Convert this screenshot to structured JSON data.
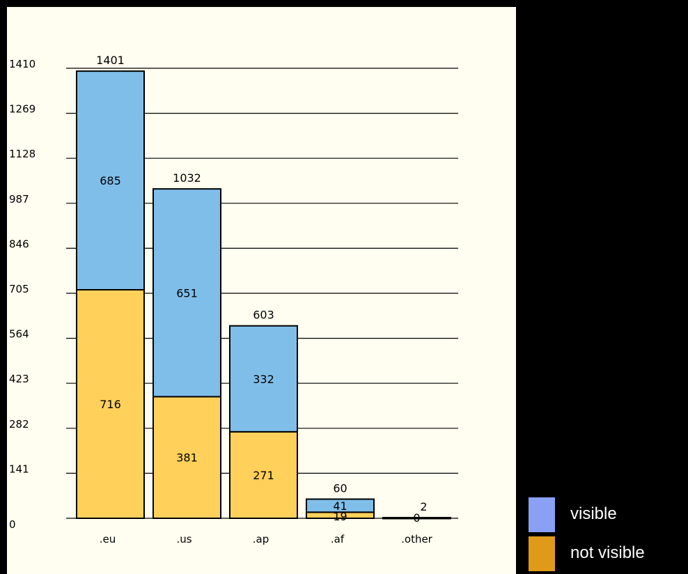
{
  "chart_data": {
    "type": "bar",
    "stacked": true,
    "categories": [
      ".eu",
      ".us",
      ".ap",
      ".af",
      ".other"
    ],
    "series": [
      {
        "name": "not visible",
        "values": [
          716,
          381,
          271,
          19,
          0
        ],
        "color": "#FFD05A"
      },
      {
        "name": "visible",
        "values": [
          685,
          651,
          332,
          41,
          2
        ],
        "color": "#80BEEA"
      }
    ],
    "totals": [
      1401,
      1032,
      603,
      60,
      2
    ],
    "segment_labels": [
      [
        "716",
        "381",
        "271",
        "19",
        "0"
      ],
      [
        "685",
        "651",
        "332",
        "41",
        "2"
      ]
    ],
    "yticks": [
      "0",
      "141",
      "282",
      "423",
      "564",
      "705",
      "846",
      "987",
      "1128",
      "1269",
      "1410"
    ],
    "ylim": [
      0,
      1410
    ],
    "grid": true
  },
  "legend": {
    "items": [
      {
        "label": "visible",
        "color": "#8AA0F5"
      },
      {
        "label": "not visible",
        "color": "#E09A1A"
      }
    ]
  }
}
